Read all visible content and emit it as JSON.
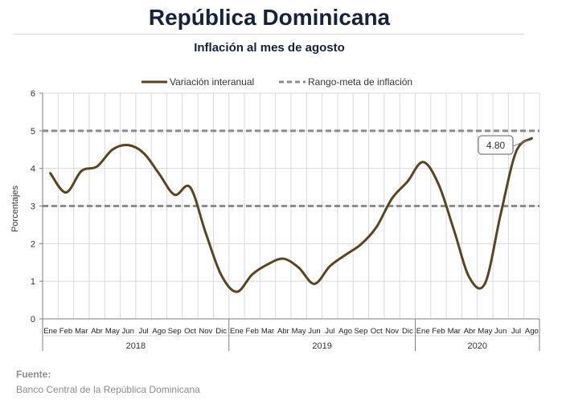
{
  "title": "República Dominicana",
  "subtitle": "Inflación al mes de agosto",
  "source": {
    "heading": "Fuente:",
    "text": "Banco Central de la República Dominicana"
  },
  "colors": {
    "series": "#5a4520",
    "target": "#8c8c8c",
    "grid": "#d9d9d9",
    "axis": "#7f7f7f"
  },
  "chart_data": {
    "type": "line",
    "ylabel": "Porcentajes",
    "ylim": [
      0,
      6
    ],
    "yticks": [
      0,
      1,
      2,
      3,
      4,
      5,
      6
    ],
    "grid": true,
    "legend_position": "top",
    "months": [
      "Ene",
      "Feb",
      "Mar",
      "Abr",
      "May",
      "Jun",
      "Jul",
      "Ago",
      "Sep",
      "Oct",
      "Nov",
      "Dic",
      "Ene",
      "Feb",
      "Mar",
      "Abr",
      "May",
      "Jun",
      "Jul",
      "Ago",
      "Sep",
      "Oct",
      "Nov",
      "Dic",
      "Ene",
      "Feb",
      "Mar",
      "Abr",
      "May",
      "Jun",
      "Jul",
      "Ago"
    ],
    "years": [
      {
        "label": "2018",
        "months": 12
      },
      {
        "label": "2019",
        "months": 12
      },
      {
        "label": "2020",
        "months": 8
      }
    ],
    "series": [
      {
        "name": "Variación interanual",
        "style": "solid",
        "values": [
          3.87,
          3.36,
          3.93,
          4.05,
          4.5,
          4.62,
          4.41,
          3.86,
          3.3,
          3.5,
          2.29,
          1.17,
          0.72,
          1.18,
          1.45,
          1.6,
          1.36,
          0.93,
          1.4,
          1.7,
          1.98,
          2.44,
          3.2,
          3.65,
          4.17,
          3.58,
          2.35,
          1.09,
          0.95,
          2.78,
          4.45,
          4.8
        ]
      },
      {
        "name": "Rango-meta de inflación",
        "style": "dashed",
        "lines": [
          3,
          5
        ]
      }
    ],
    "annotation": {
      "label": "4.80",
      "month_index": 31
    }
  }
}
